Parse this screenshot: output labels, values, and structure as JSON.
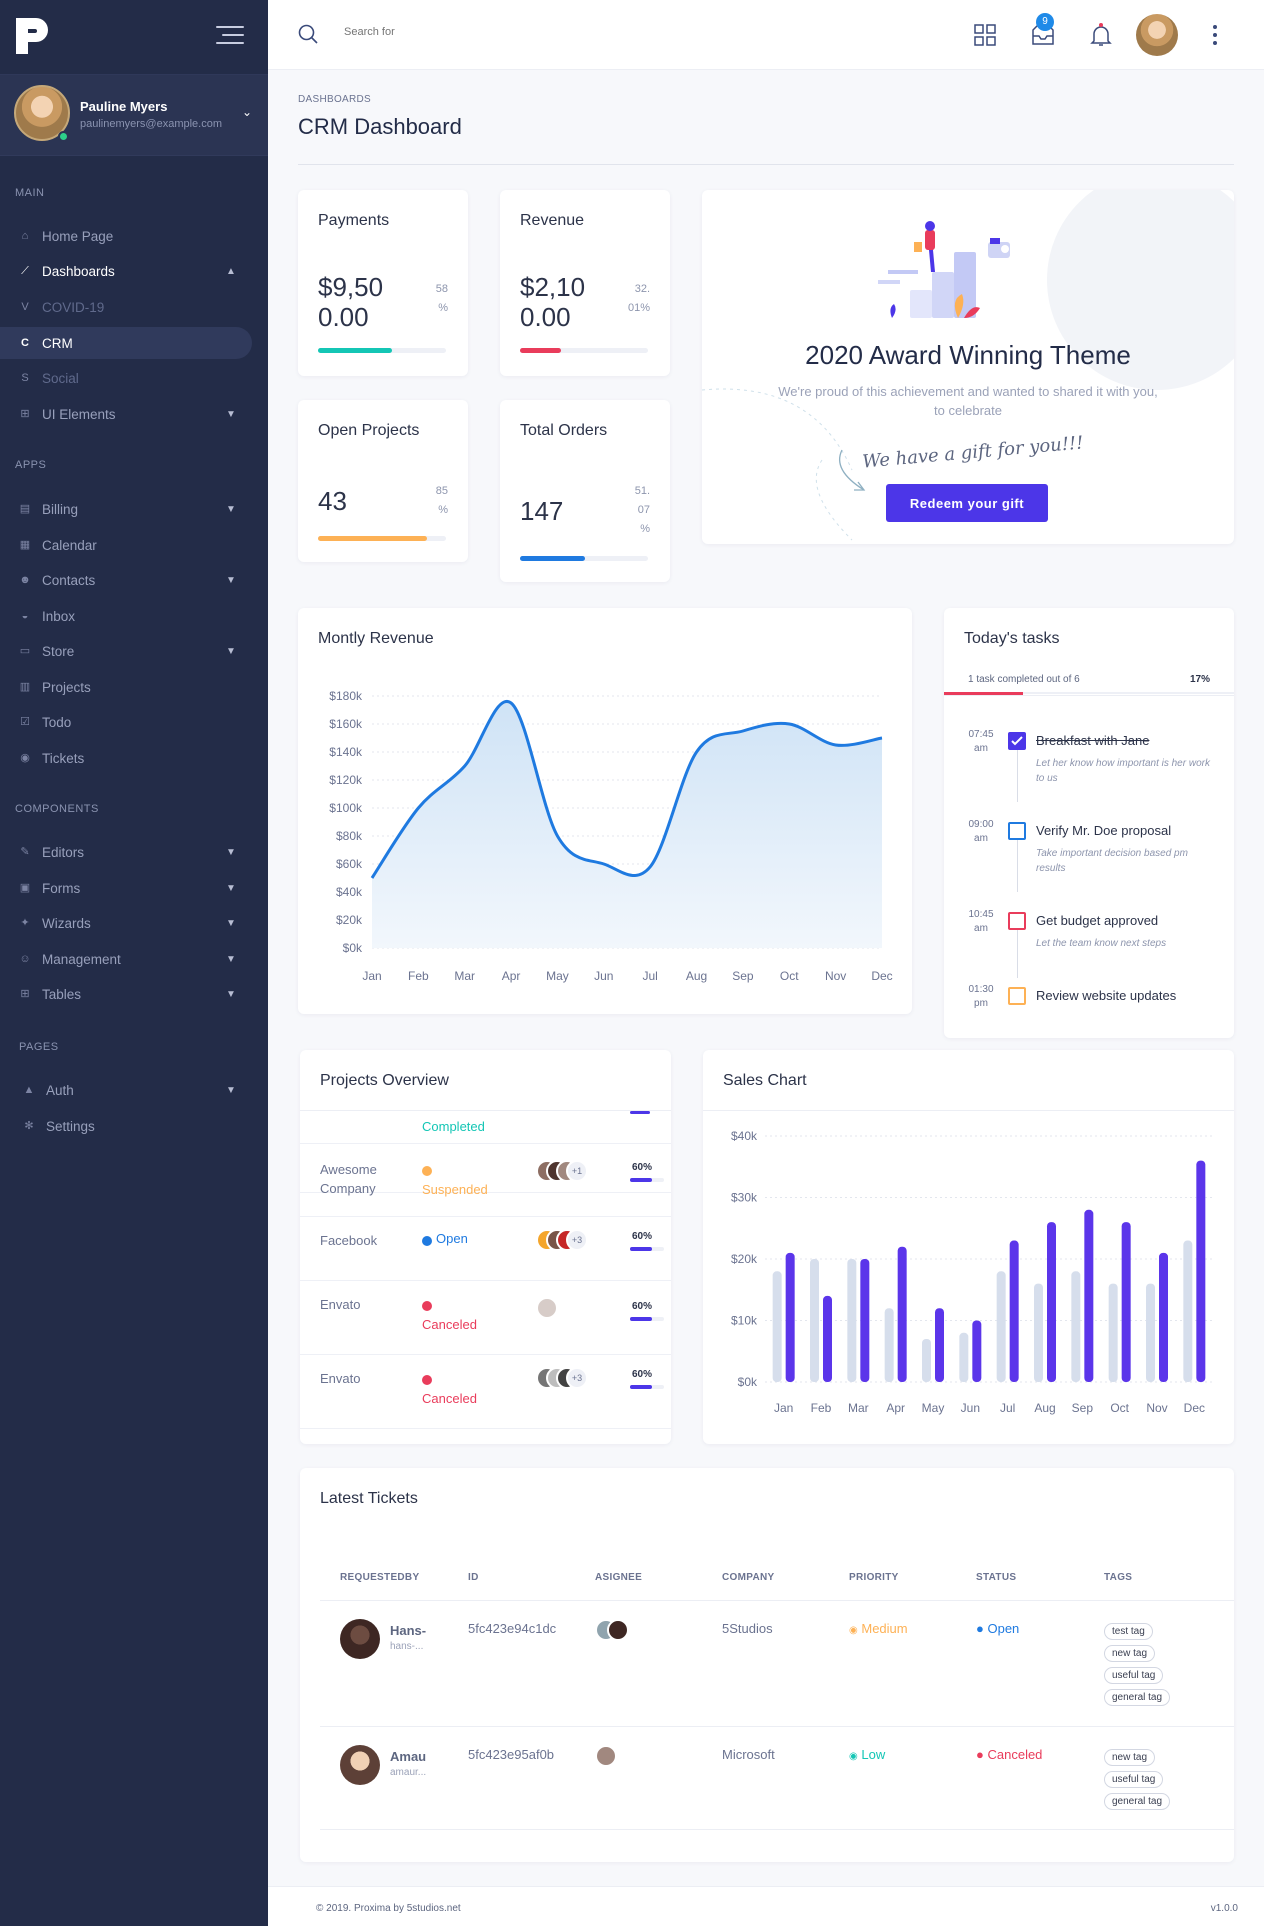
{
  "sidebar": {
    "user": {
      "name": "Pauline Myers",
      "email": "paulinemyers@example.com"
    },
    "sections": [
      "MAIN",
      "APPS",
      "COMPONENTS",
      "PAGES"
    ],
    "main": [
      "Home Page",
      "Dashboards",
      "COVID-19",
      "CRM",
      "Social",
      "UI Elements"
    ],
    "apps": [
      "Billing",
      "Calendar",
      "Contacts",
      "Inbox",
      "Store",
      "Projects",
      "Todo",
      "Tickets"
    ],
    "components": [
      "Editors",
      "Forms",
      "Wizards",
      "Management",
      "Tables"
    ],
    "pages": [
      "Auth",
      "Settings"
    ]
  },
  "topbar": {
    "search_placeholder": "Search for",
    "inbox_badge": "9"
  },
  "page": {
    "breadcrumb": "DASHBOARDS",
    "title": "CRM Dashboard"
  },
  "stats": [
    {
      "title": "Payments",
      "value_l1": "$9,50",
      "value_l2": "0.00",
      "pct_l1": "58",
      "pct_l2": "%",
      "color": "#14c6b5",
      "fill": 0.58
    },
    {
      "title": "Revenue",
      "value_l1": "$2,10",
      "value_l2": "0.00",
      "pct_l1": "32.",
      "pct_l2": "01%",
      "color": "#e93c5b",
      "fill": 0.32
    },
    {
      "title": "Open Projects",
      "value": "43",
      "pct_l1": "85",
      "pct_l2": "%",
      "color": "#fdb155",
      "fill": 0.85
    },
    {
      "title": "Total Orders",
      "value": "147",
      "pct_l1": "51.",
      "pct_l2": "07",
      "pct_l3": "%",
      "color": "#1f7ae0",
      "fill": 0.51
    }
  ],
  "award": {
    "title": "2020 Award Winning Theme",
    "subtitle": "We're proud of this achievement and wanted to shared it with you, to celebrate",
    "gift": "We have a gift for you!!!",
    "button": "Redeem your gift"
  },
  "revenue_card": {
    "title": "Montly Revenue"
  },
  "tasks": {
    "title": "Today's tasks",
    "meta": "1 task completed out of 6",
    "pct": "17%",
    "completed_fraction": 0.17,
    "items": [
      {
        "time1": "07:45",
        "time2": "am",
        "name": "Breakfast with Jane",
        "desc": "Let her know how important is her work to us",
        "done": true,
        "color": "#4c36e8"
      },
      {
        "time1": "09:00",
        "time2": "am",
        "name": "Verify Mr. Doe proposal",
        "desc": "Take important decision based pm results",
        "done": false,
        "color": "#1f7ae0"
      },
      {
        "time1": "10:45",
        "time2": "am",
        "name": "Get budget approved",
        "desc": "Let the team know next steps",
        "done": false,
        "color": "#e93c5b"
      },
      {
        "time1": "01:30",
        "time2": "pm",
        "name": "Review website updates",
        "desc": "",
        "done": false,
        "color": "#fdb155"
      }
    ]
  },
  "projects": {
    "title": "Projects Overview",
    "partial_status": "Completed",
    "rows": [
      {
        "name1": "Awesome",
        "name2": "Company",
        "status": "Suspended",
        "color": "#fdb155",
        "extra": "+1",
        "pct": "60%"
      },
      {
        "name1": "Facebook",
        "name2": "",
        "status": "Open",
        "color": "#1f7ae0",
        "extra": "+3",
        "pct": "60%"
      },
      {
        "name1": "Envato",
        "name2": "",
        "status": "Canceled",
        "color": "#e93c5b",
        "extra": "",
        "pct": "60%"
      },
      {
        "name1": "Envato",
        "name2": "",
        "status": "Canceled",
        "color": "#e93c5b",
        "extra": "+3",
        "pct": "60%"
      }
    ]
  },
  "sales_card": {
    "title": "Sales Chart"
  },
  "tickets": {
    "title": "Latest Tickets",
    "headers": [
      "REQUESTEDBY",
      "ID",
      "ASIGNEE",
      "COMPANY",
      "PRIORITY",
      "STATUS",
      "TAGS"
    ],
    "rows": [
      {
        "name": "Hans-",
        "user": "hans-...",
        "id": "5fc423e94c1dc",
        "company": "5Studios",
        "priority": "Medium",
        "priority_color": "#fdb155",
        "status": "Open",
        "status_color": "#1f7ae0",
        "tags": [
          "test tag",
          "new tag",
          "useful tag",
          "general tag"
        ]
      },
      {
        "name": "Amau",
        "user": "amaur...",
        "id": "5fc423e95af0b",
        "company": "Microsoft",
        "priority": "Low",
        "priority_color": "#14c6b5",
        "status": "Canceled",
        "status_color": "#e93c5b",
        "tags": [
          "new tag",
          "useful tag",
          "general tag"
        ]
      }
    ]
  },
  "footer": {
    "copyright": "© 2019. Proxima by 5studios.net",
    "version": "v1.0.0"
  },
  "chart_data": [
    {
      "type": "area",
      "title": "Montly Revenue",
      "categories": [
        "Jan",
        "Feb",
        "Mar",
        "Apr",
        "May",
        "Jun",
        "Jul",
        "Aug",
        "Sep",
        "Oct",
        "Nov",
        "Dec"
      ],
      "values": [
        50,
        100,
        130,
        175,
        80,
        60,
        58,
        140,
        155,
        160,
        145,
        150
      ],
      "ylim": [
        0,
        180
      ],
      "yticks": [
        "$0k",
        "$20k",
        "$40k",
        "$60k",
        "$80k",
        "$100k",
        "$120k",
        "$140k",
        "$160k",
        "$180k"
      ],
      "color": "#1f7ae0",
      "grid": true
    },
    {
      "type": "bar",
      "title": "Sales Chart",
      "categories": [
        "Jan",
        "Feb",
        "Mar",
        "Apr",
        "May",
        "Jun",
        "Jul",
        "Aug",
        "Sep",
        "Oct",
        "Nov",
        "Dec"
      ],
      "series": [
        {
          "color": "#d6deec",
          "values": [
            18,
            20,
            20,
            12,
            7,
            8,
            18,
            16,
            18,
            16,
            16,
            23
          ]
        },
        {
          "color": "#5b35ea",
          "values": [
            21,
            14,
            20,
            22,
            12,
            10,
            23,
            26,
            28,
            26,
            21,
            36
          ]
        }
      ],
      "ylim": [
        0,
        40
      ],
      "yticks": [
        "$0k",
        "$10k",
        "$20k",
        "$30k",
        "$40k"
      ],
      "grid": true
    }
  ]
}
